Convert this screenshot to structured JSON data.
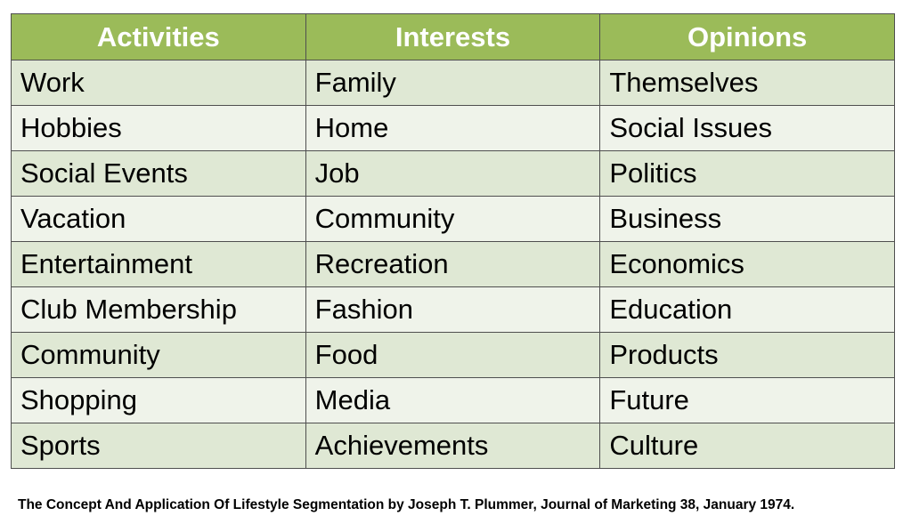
{
  "table": {
    "headers": [
      "Activities",
      "Interests",
      "Opinions"
    ],
    "rows": [
      [
        "Work",
        "Family",
        "Themselves"
      ],
      [
        "Hobbies",
        "Home",
        "Social Issues"
      ],
      [
        "Social Events",
        "Job",
        "Politics"
      ],
      [
        "Vacation",
        "Community",
        "Business"
      ],
      [
        "Entertainment",
        "Recreation",
        "Economics"
      ],
      [
        "Club Membership",
        "Fashion",
        "Education"
      ],
      [
        "Community",
        "Food",
        "Products"
      ],
      [
        "Shopping",
        "Media",
        "Future"
      ],
      [
        "Sports",
        "Achievements",
        "Culture"
      ]
    ]
  },
  "citation": "The Concept And Application Of Lifestyle Segmentation by Joseph T. Plummer, Journal of Marketing 38, January 1974.",
  "colors": {
    "header_bg": "#9bbb59",
    "header_text": "#ffffff",
    "row_odd_bg": "#dfe8d4",
    "row_even_bg": "#eff3ea",
    "border": "#4f4f4f"
  }
}
